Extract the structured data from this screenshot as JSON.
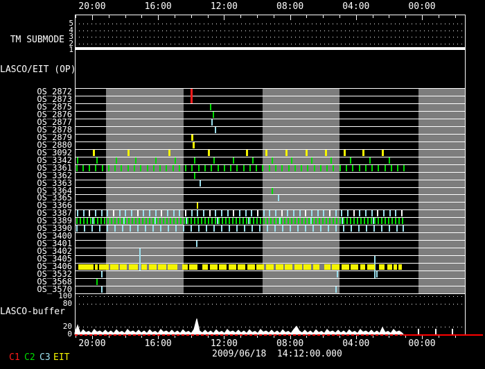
{
  "chart_data": {
    "type": "timeline",
    "title": "",
    "date_label": "2009/06/18  14:12:00.000",
    "colors": {
      "c1": "#ff1a1a",
      "c2": "#00dd00",
      "c3": "#9be0ee",
      "eit": "#f5f500",
      "white": "#ffffff",
      "grey": "#7d7d7d",
      "red_line": "#ff0000",
      "background": "#000000"
    },
    "time_axis": {
      "labels": [
        "20:00",
        "16:00",
        "12:00",
        "08:00",
        "04:00",
        "00:00"
      ],
      "minor_tick_hours": 1,
      "major_tick_hours": 4
    },
    "tm": {
      "label": "TM SUBMODE",
      "scale": [
        "5",
        "4",
        "3",
        "2",
        "1"
      ],
      "value": 1
    },
    "lasco_eit": {
      "label": "LASCO/EIT (OP)",
      "events": []
    },
    "os_rows": [
      {
        "label": "OS_2872",
        "ticks": [
          {
            "x": 275,
            "c": "c1",
            "span": 2,
            "w": 3
          }
        ]
      },
      {
        "label": "OS_2873",
        "ticks": []
      },
      {
        "label": "OS_2875",
        "ticks": [
          {
            "x": 303,
            "c": "c2"
          }
        ]
      },
      {
        "label": "OS_2876",
        "ticks": [
          {
            "x": 307,
            "c": "c2"
          }
        ]
      },
      {
        "label": "OS_2877",
        "ticks": [
          {
            "x": 305,
            "c": "c3"
          }
        ]
      },
      {
        "label": "OS_2878",
        "ticks": [
          {
            "x": 310,
            "c": "c3"
          }
        ]
      },
      {
        "label": "OS_2879",
        "ticks": [
          {
            "x": 276,
            "c": "eit",
            "w": 3
          }
        ]
      },
      {
        "label": "OS_2880",
        "ticks": [
          {
            "x": 278,
            "c": "eit",
            "w": 3
          }
        ]
      },
      {
        "label": "OS_3092",
        "tick_w": 3,
        "tick_c": "eit",
        "xs": [
          134,
          184,
          243,
          300,
          355,
          383,
          412,
          441,
          469,
          496,
          523,
          551
        ]
      },
      {
        "label": "OS_3342",
        "tick_c": "c2",
        "xs": [
          111,
          139,
          167,
          195,
          224,
          252,
          280,
          308,
          336,
          364,
          392,
          420,
          449,
          477,
          505,
          533,
          561
        ]
      },
      {
        "label": "OS_3361",
        "tick_c": "c2",
        "xs": [
          110,
          119,
          128,
          137,
          147,
          156,
          165,
          174,
          184,
          193,
          202,
          212,
          221,
          230,
          239,
          249,
          258,
          267,
          276,
          286,
          295,
          304,
          314,
          323,
          332,
          341,
          351,
          360,
          369,
          378,
          388,
          397,
          406,
          416,
          425,
          434,
          443,
          453,
          462,
          471,
          480,
          490,
          499,
          508,
          518,
          527,
          536,
          545,
          555,
          564,
          573,
          582
        ]
      },
      {
        "label": "OS_3362",
        "ticks": [
          {
            "x": 280,
            "c": "c2"
          }
        ]
      },
      {
        "label": "OS_3363",
        "ticks": [
          {
            "x": 288,
            "c": "c3"
          }
        ]
      },
      {
        "label": "OS_3364",
        "ticks": [
          {
            "x": 392,
            "c": "c2"
          }
        ]
      },
      {
        "label": "OS_3365",
        "ticks": [
          {
            "x": 401,
            "c": "c3"
          }
        ]
      },
      {
        "label": "OS_3366",
        "ticks": [
          {
            "x": 284,
            "c": "eit"
          }
        ]
      },
      {
        "label": "OS_3387",
        "tick_c": "c3",
        "xs": [
          111,
          120,
          137,
          146,
          154,
          172,
          180,
          189,
          206,
          215,
          224,
          241,
          250,
          258,
          276,
          284,
          293,
          310,
          319,
          328,
          345,
          354,
          362,
          380,
          388,
          397,
          414,
          423,
          432,
          449,
          458,
          466,
          484,
          492,
          501,
          518,
          527,
          536,
          553,
          562,
          570
        ],
        "xs2_c": "white",
        "xs2": [
          128,
          163,
          198,
          232,
          267,
          302,
          336,
          371,
          406,
          440,
          475,
          510,
          544,
          579
        ]
      },
      {
        "label": "OS_3389",
        "tick_c": "c2",
        "xs": [
          110,
          115,
          120,
          125,
          130,
          135,
          140,
          145,
          150,
          155,
          160,
          165,
          170,
          175,
          180,
          185,
          190,
          195,
          200,
          205,
          210,
          215,
          220,
          225,
          230,
          235,
          240,
          245,
          250,
          255,
          260,
          265,
          270,
          275,
          280,
          285,
          290,
          295,
          300,
          305,
          310,
          315,
          320,
          325,
          330,
          335,
          340,
          345,
          350,
          355,
          360,
          365,
          370,
          375,
          380,
          385,
          390,
          395,
          400,
          405,
          410,
          415,
          420,
          425,
          430,
          435,
          440,
          445,
          450,
          455,
          460,
          465,
          470,
          475,
          480,
          485,
          490,
          495,
          500,
          505,
          510,
          515,
          520,
          525,
          530,
          535,
          540,
          545,
          550,
          555,
          560,
          565,
          570,
          575,
          580
        ],
        "xs2_c": "c3",
        "xs2": [
          133,
          178,
          223,
          268,
          313,
          358,
          403,
          448,
          493,
          538
        ]
      },
      {
        "label": "OS_3390",
        "tick_c": "c3",
        "xs": [
          110,
          121,
          132,
          143,
          154,
          165,
          176,
          187,
          198,
          209,
          220,
          231,
          242,
          253,
          264,
          275,
          286,
          297,
          308,
          319,
          330,
          341,
          352,
          363,
          374,
          385,
          396,
          407,
          418,
          429,
          440,
          451,
          462,
          473,
          484,
          495,
          506,
          517,
          528,
          539,
          550,
          561,
          572,
          581
        ]
      },
      {
        "label": "OS_3400",
        "ticks": []
      },
      {
        "label": "OS_3401",
        "ticks": [
          {
            "x": 283,
            "c": "c3"
          }
        ]
      },
      {
        "label": "OS_3402",
        "ticks": [
          {
            "x": 201,
            "c": "c3",
            "span": 3
          }
        ]
      },
      {
        "label": "OS_3405",
        "ticks": [
          {
            "x": 540,
            "c": "c3",
            "span": 3
          }
        ]
      },
      {
        "label": "OS_3406",
        "seg_c": "eit",
        "segments": [
          [
            113,
            135
          ],
          [
            137,
            141
          ],
          [
            143,
            157
          ],
          [
            159,
            171
          ],
          [
            173,
            183
          ],
          [
            186,
            199
          ],
          [
            204,
            212
          ],
          [
            215,
            226
          ],
          [
            228,
            240
          ],
          [
            242,
            256
          ],
          [
            263,
            271
          ],
          [
            273,
            285
          ],
          [
            292,
            300
          ],
          [
            303,
            314
          ],
          [
            316,
            327
          ],
          [
            330,
            341
          ],
          [
            343,
            354
          ],
          [
            357,
            368
          ],
          [
            370,
            381
          ],
          [
            384,
            395
          ],
          [
            398,
            409
          ],
          [
            411,
            422
          ],
          [
            425,
            436
          ],
          [
            438,
            449
          ],
          [
            452,
            461
          ],
          [
            468,
            477
          ],
          [
            479,
            490
          ],
          [
            493,
            504
          ],
          [
            506,
            517
          ],
          [
            520,
            527
          ],
          [
            530,
            541
          ],
          [
            547,
            555
          ],
          [
            559,
            566
          ],
          [
            568,
            573
          ],
          [
            575,
            580
          ]
        ],
        "ticks": []
      },
      {
        "label": "OS_3532",
        "tick_c": "c3",
        "xs": [
          146,
          486,
          543
        ]
      },
      {
        "label": "OS_3568",
        "ticks": [
          {
            "x": 139,
            "c": "c2"
          }
        ]
      },
      {
        "label": "OS_3570",
        "tick_c": "c3",
        "xs": [
          146,
          484
        ]
      }
    ],
    "grey_bands": [
      [
        153,
        265
      ],
      [
        379,
        490
      ],
      [
        604,
        671
      ]
    ],
    "buffer": {
      "label": "LASCO-buffer",
      "y_ticks": [
        {
          "text": "100",
          "value": 100
        },
        {
          "text": "80",
          "value": 80
        },
        {
          "text": "20",
          "value": 20
        },
        {
          "text": "0",
          "value": 0
        }
      ],
      "grid_values": [
        100,
        80,
        20
      ],
      "series_x0": 108,
      "series_dx": 4,
      "values": [
        4,
        24,
        3,
        12,
        5,
        8,
        3,
        13,
        6,
        9,
        4,
        11,
        4,
        9,
        3,
        12,
        5,
        8,
        3,
        13,
        6,
        9,
        4,
        11,
        4,
        9,
        3,
        12,
        5,
        8,
        3,
        13,
        6,
        9,
        4,
        11,
        4,
        9,
        3,
        12,
        5,
        8,
        3,
        13,
        41,
        9,
        4,
        11,
        4,
        9,
        3,
        12,
        5,
        8,
        3,
        13,
        6,
        9,
        4,
        11,
        4,
        9,
        3,
        12,
        5,
        8,
        3,
        13,
        6,
        9,
        4,
        11,
        4,
        9,
        3,
        12,
        5,
        8,
        3,
        13,
        21,
        9,
        4,
        11,
        4,
        9,
        3,
        12,
        5,
        8,
        3,
        13,
        6,
        9,
        4,
        11,
        4,
        9,
        3,
        12,
        5,
        8,
        3,
        13,
        6,
        9,
        4,
        11,
        4,
        9,
        3,
        18,
        5,
        8,
        3,
        13,
        6,
        9,
        4
      ],
      "signal_end_x": 582,
      "post_ticks": [
        603,
        628,
        652
      ],
      "baseline_value": 0
    },
    "legend": [
      {
        "label": "C1",
        "color": "c1"
      },
      {
        "label": "C2",
        "color": "c2"
      },
      {
        "label": "C3",
        "color": "c3"
      },
      {
        "label": "EIT",
        "color": "eit"
      }
    ]
  }
}
